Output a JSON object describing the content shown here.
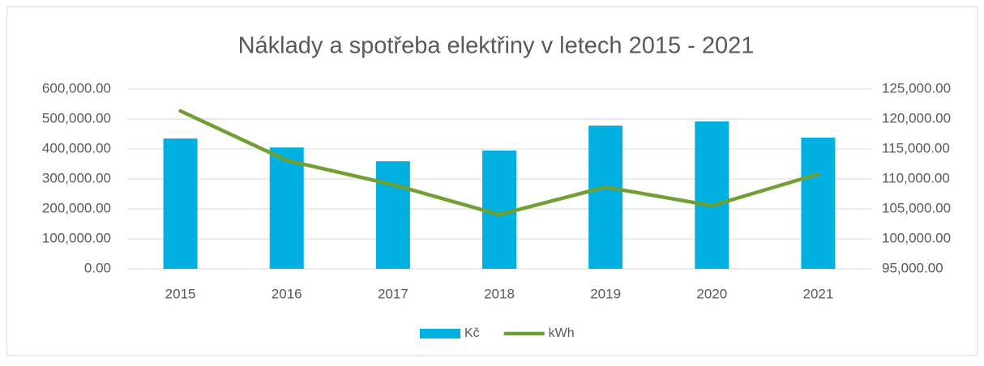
{
  "chart_data": {
    "type": "bar_line",
    "title": "Náklady a spotřeba elektřiny v letech 2015 - 2021",
    "categories": [
      "2015",
      "2016",
      "2017",
      "2018",
      "2019",
      "2020",
      "2021"
    ],
    "series": [
      {
        "name": "Kč",
        "color": "#00b0e0",
        "type": "bar",
        "axis": "y",
        "values": [
          435000,
          405000,
          359000,
          395000,
          478000,
          492000,
          438000
        ]
      },
      {
        "name": "kWh",
        "color": "#70a033",
        "type": "line",
        "axis": "y2",
        "values": [
          121350,
          113100,
          109050,
          104050,
          108650,
          105540,
          110810
        ]
      }
    ],
    "ylim": [
      0,
      600000
    ],
    "yticks": [
      {
        "value": 0,
        "label": "0.00"
      },
      {
        "value": 100000,
        "label": "100,000.00"
      },
      {
        "value": 200000,
        "label": "200,000.00"
      },
      {
        "value": 300000,
        "label": "300,000.00"
      },
      {
        "value": 400000,
        "label": "400,000.00"
      },
      {
        "value": 500000,
        "label": "500,000.00"
      },
      {
        "value": 600000,
        "label": "600,000.00"
      }
    ],
    "y2lim": [
      95000,
      125000
    ],
    "y2ticks": [
      {
        "value": 95000,
        "label": "95,000.00"
      },
      {
        "value": 100000,
        "label": "100,000.00"
      },
      {
        "value": 105000,
        "label": "105,000.00"
      },
      {
        "value": 110000,
        "label": "110,000.00"
      },
      {
        "value": 115000,
        "label": "115,000.00"
      },
      {
        "value": 120000,
        "label": "120,000.00"
      },
      {
        "value": 125000,
        "label": "125,000.00"
      }
    ],
    "grid": true,
    "legend": "bottom"
  }
}
